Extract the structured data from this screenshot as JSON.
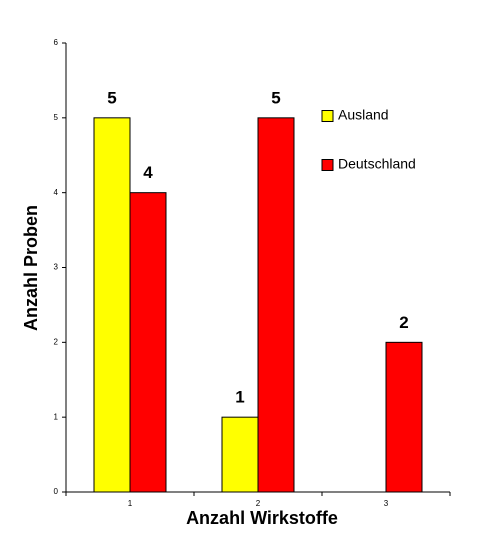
{
  "chart_data": {
    "type": "bar",
    "x_label": "Anzahl Wirkstoffe",
    "y_label": "Anzahl Proben",
    "categories": [
      "1",
      "2",
      "3"
    ],
    "series": [
      {
        "name": "Ausland",
        "color": "#ffff00",
        "values": [
          5,
          1,
          null
        ]
      },
      {
        "name": "Deutschland",
        "color": "#ff0000",
        "values": [
          4,
          5,
          2
        ]
      }
    ],
    "ylim": [
      0,
      6
    ],
    "yticks": [
      0,
      1,
      2,
      3,
      4,
      5,
      6
    ],
    "legend": "upper right"
  }
}
